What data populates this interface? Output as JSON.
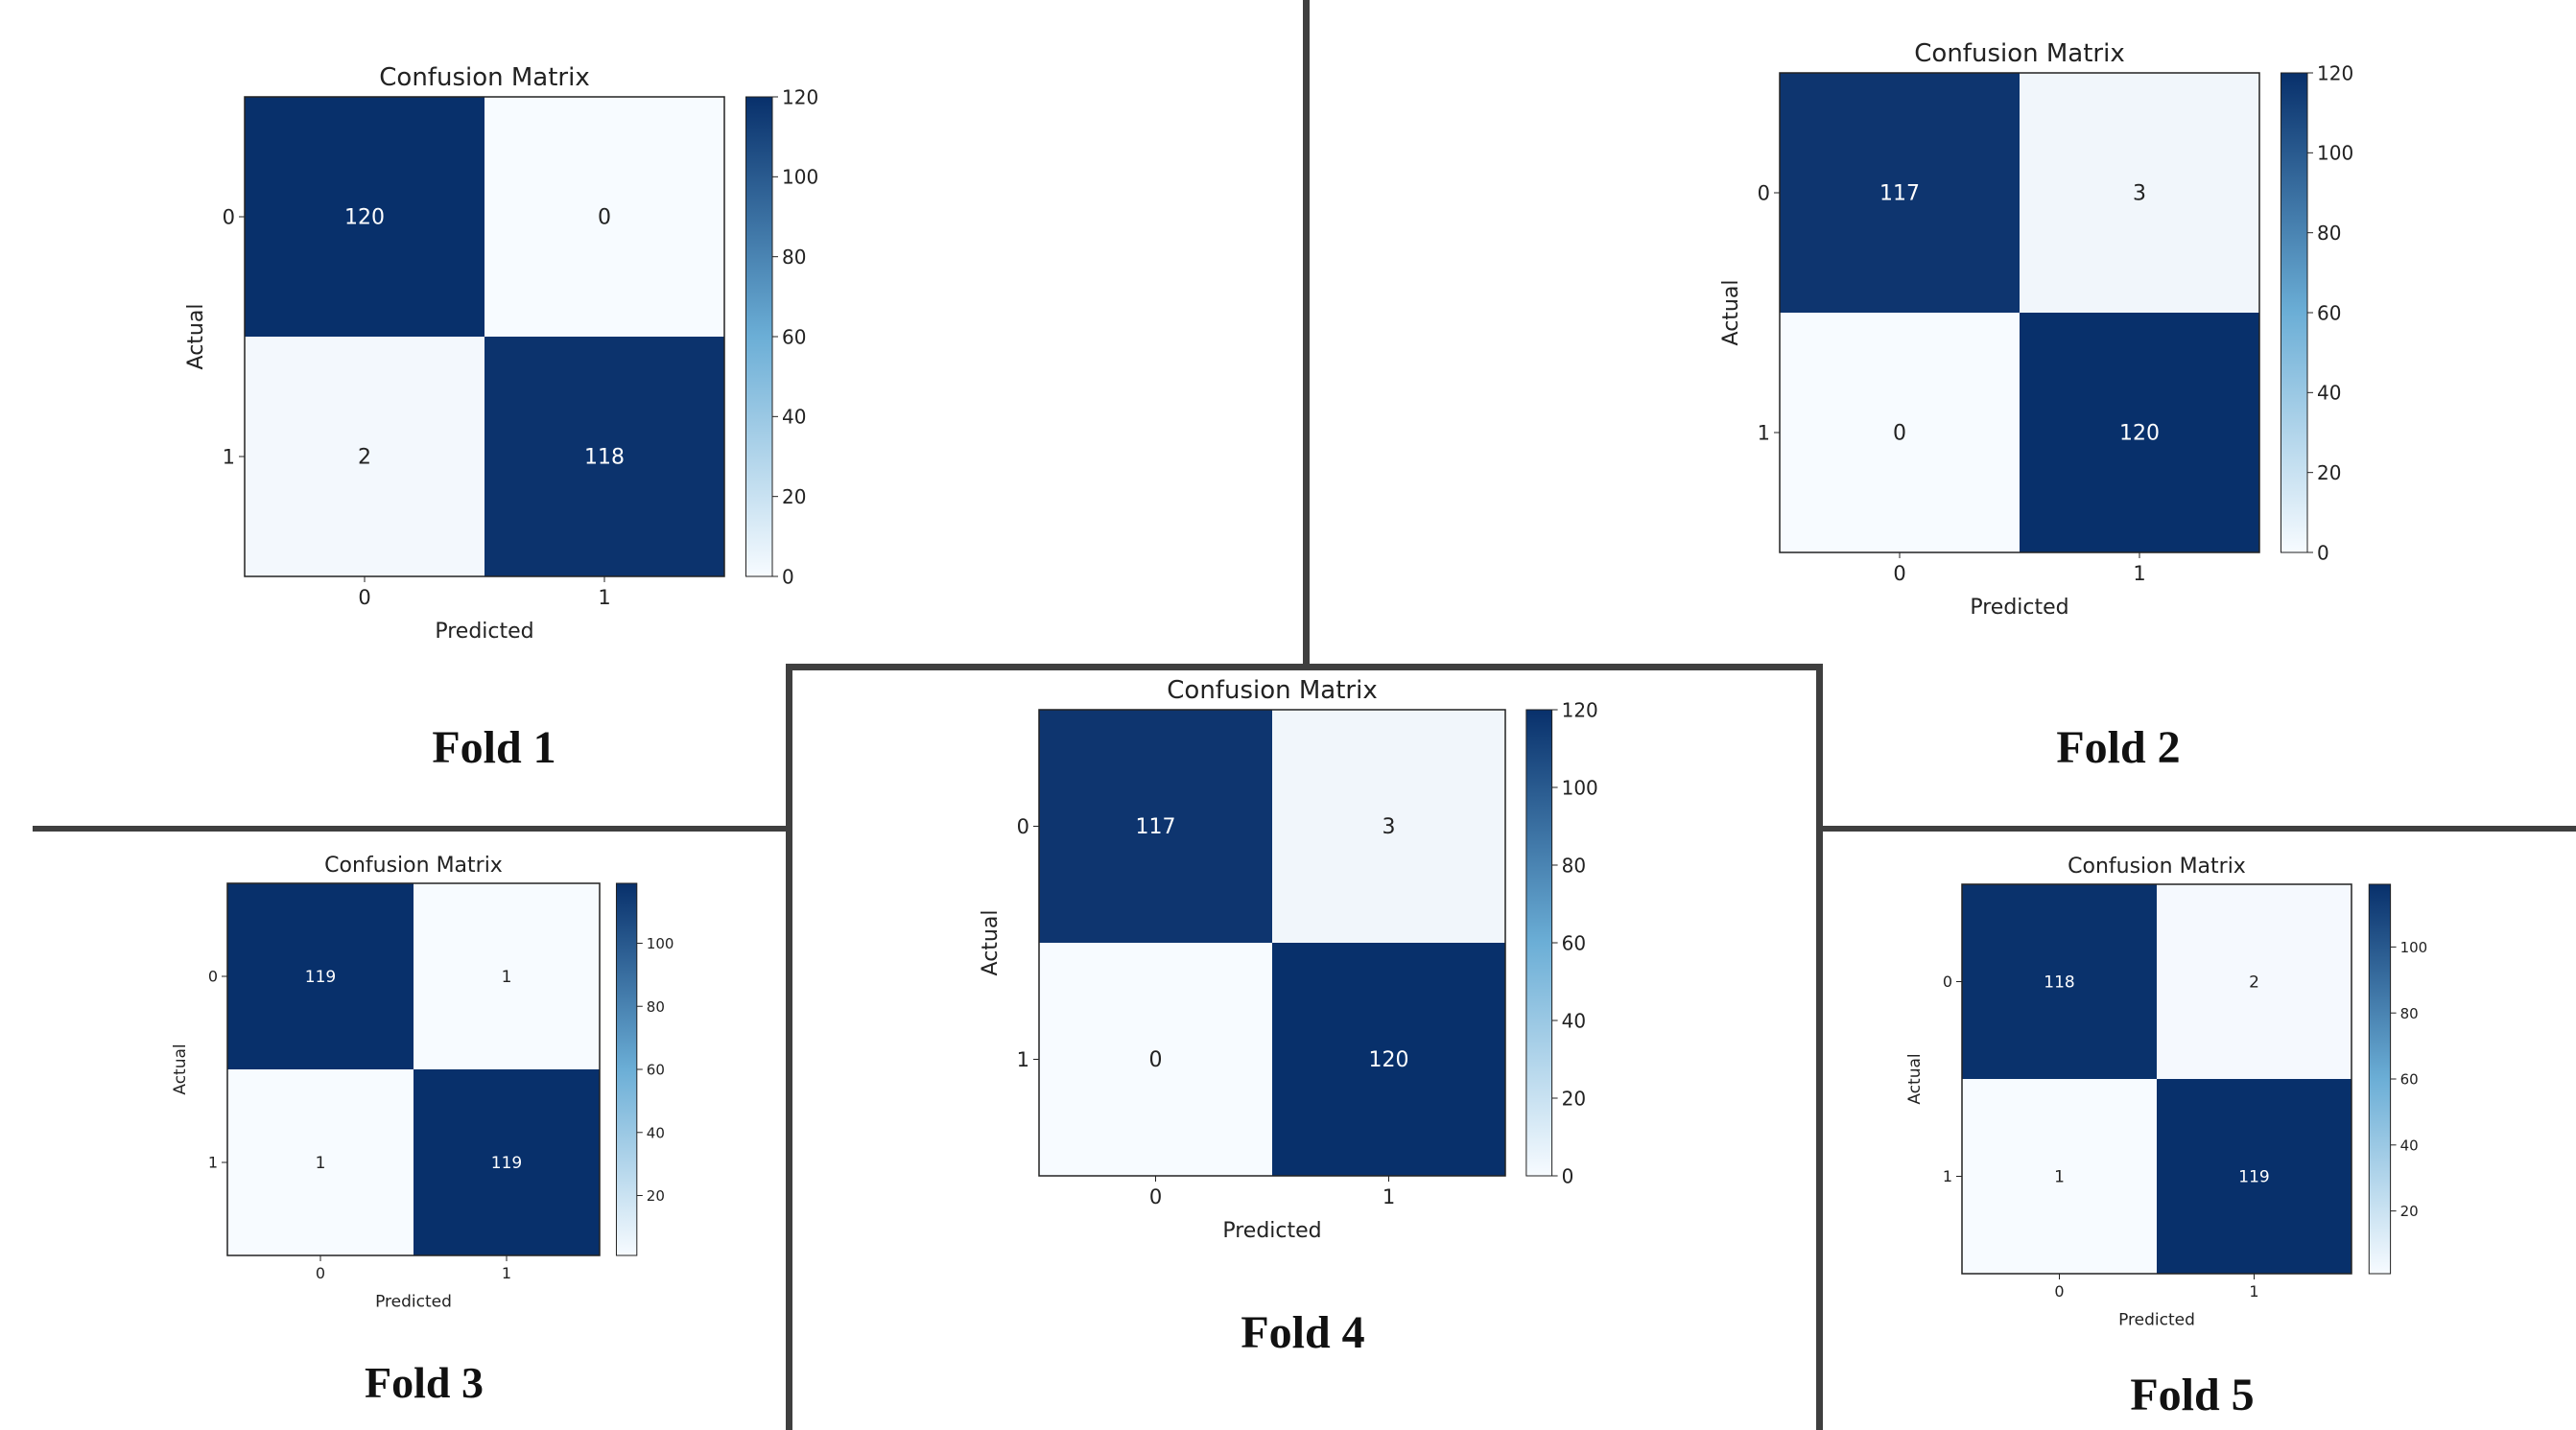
{
  "chart_data": [
    {
      "type": "heatmap",
      "title": "Confusion Matrix",
      "fold_label": "Fold 1",
      "xlabel": "Predicted",
      "ylabel": "Actual",
      "x_categories": [
        "0",
        "1"
      ],
      "y_categories": [
        "0",
        "1"
      ],
      "values": [
        [
          120,
          0
        ],
        [
          2,
          118
        ]
      ],
      "colorbar": {
        "min": 0,
        "max": 120,
        "ticks": [
          0,
          20,
          40,
          60,
          80,
          100,
          120
        ]
      },
      "colormap": "Blues"
    },
    {
      "type": "heatmap",
      "title": "Confusion Matrix",
      "fold_label": "Fold 2",
      "xlabel": "Predicted",
      "ylabel": "Actual",
      "x_categories": [
        "0",
        "1"
      ],
      "y_categories": [
        "0",
        "1"
      ],
      "values": [
        [
          117,
          3
        ],
        [
          0,
          120
        ]
      ],
      "colorbar": {
        "min": 0,
        "max": 120,
        "ticks": [
          0,
          20,
          40,
          60,
          80,
          100,
          120
        ]
      },
      "colormap": "Blues"
    },
    {
      "type": "heatmap",
      "title": "Confusion Matrix",
      "fold_label": "Fold 3",
      "xlabel": "Predicted",
      "ylabel": "Actual",
      "x_categories": [
        "0",
        "1"
      ],
      "y_categories": [
        "0",
        "1"
      ],
      "values": [
        [
          119,
          1
        ],
        [
          1,
          119
        ]
      ],
      "colorbar": {
        "min": 1,
        "max": 119,
        "ticks": [
          20,
          40,
          60,
          80,
          100
        ]
      },
      "colormap": "Blues"
    },
    {
      "type": "heatmap",
      "title": "Confusion Matrix",
      "fold_label": "Fold 4",
      "xlabel": "Predicted",
      "ylabel": "Actual",
      "x_categories": [
        "0",
        "1"
      ],
      "y_categories": [
        "0",
        "1"
      ],
      "values": [
        [
          117,
          3
        ],
        [
          0,
          120
        ]
      ],
      "colorbar": {
        "min": 0,
        "max": 120,
        "ticks": [
          0,
          20,
          40,
          60,
          80,
          100,
          120
        ]
      },
      "colormap": "Blues"
    },
    {
      "type": "heatmap",
      "title": "Confusion Matrix",
      "fold_label": "Fold 5",
      "xlabel": "Predicted",
      "ylabel": "Actual",
      "x_categories": [
        "0",
        "1"
      ],
      "y_categories": [
        "0",
        "1"
      ],
      "values": [
        [
          118,
          2
        ],
        [
          1,
          119
        ]
      ],
      "colorbar": {
        "min": 1,
        "max": 119,
        "ticks": [
          20,
          40,
          60,
          80,
          100
        ]
      },
      "colormap": "Blues"
    }
  ],
  "colors": {
    "cmap_low": "#f7fbff",
    "cmap_high": "#08306b",
    "divider": "#3f3f3f"
  }
}
